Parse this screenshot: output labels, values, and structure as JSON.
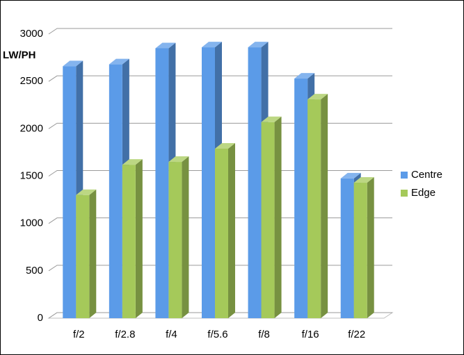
{
  "chart_data": {
    "type": "bar3d",
    "y_label": "LW/PH",
    "categories": [
      "f/2",
      "f/2.8",
      "f/4",
      "f/5.6",
      "f/8",
      "f/16",
      "f/22"
    ],
    "series": [
      {
        "name": "Centre",
        "color": "#5b9be8",
        "values": [
          2660,
          2680,
          2850,
          2860,
          2860,
          2530,
          1475
        ]
      },
      {
        "name": "Edge",
        "color": "#a5c95a",
        "values": [
          1300,
          1620,
          1650,
          1790,
          2070,
          2310,
          1430
        ]
      }
    ],
    "ylim": [
      0,
      3000
    ],
    "yticks": [
      0,
      500,
      1000,
      1500,
      2000,
      2500,
      3000
    ],
    "grid": true,
    "legend": "right"
  }
}
